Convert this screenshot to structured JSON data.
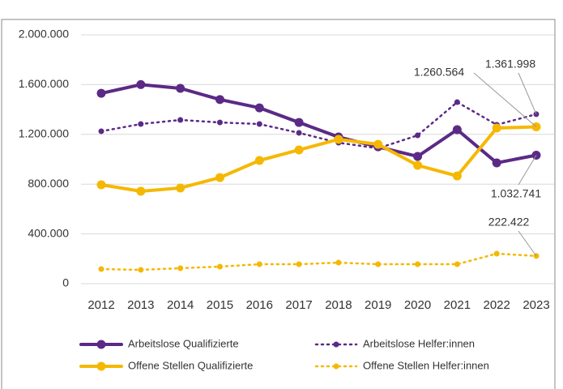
{
  "chart_data": {
    "type": "line",
    "categories": [
      "2012",
      "2013",
      "2014",
      "2015",
      "2016",
      "2017",
      "2018",
      "2019",
      "2020",
      "2021",
      "2022",
      "2023"
    ],
    "series": [
      {
        "name": "Arbeitslose Qualifizierte",
        "color": "#5b2a86",
        "style": "solid",
        "values": [
          1530000,
          1600000,
          1570000,
          1480000,
          1413000,
          1296000,
          1179000,
          1100000,
          1023000,
          1238000,
          971000,
          1032741
        ],
        "value_labels": [
          null,
          null,
          null,
          null,
          null,
          null,
          null,
          null,
          null,
          null,
          null,
          "1.032.741"
        ]
      },
      {
        "name": "Arbeitslose Helfer:innen",
        "color": "#5b2a86",
        "style": "dotted",
        "values": [
          1225000,
          1283000,
          1316000,
          1296000,
          1283000,
          1212000,
          1133000,
          1088000,
          1192000,
          1459000,
          1277000,
          1361998
        ],
        "value_labels": [
          null,
          null,
          null,
          null,
          null,
          null,
          null,
          null,
          null,
          null,
          null,
          "1.361.998"
        ]
      },
      {
        "name": "Offene Stellen Qualifizierte",
        "color": "#f5b800",
        "style": "solid",
        "values": [
          795000,
          743000,
          769000,
          853000,
          990000,
          1075000,
          1160000,
          1120000,
          951000,
          866000,
          1251000,
          1260564
        ],
        "value_labels": [
          null,
          null,
          null,
          null,
          null,
          null,
          null,
          null,
          null,
          null,
          null,
          "1.260.564"
        ]
      },
      {
        "name": "Offene Stellen Helfer:innen",
        "color": "#f5b800",
        "style": "dotted",
        "values": [
          117000,
          111000,
          124000,
          137000,
          156000,
          156000,
          169000,
          156000,
          156000,
          156000,
          241000,
          222422
        ],
        "value_labels": [
          null,
          null,
          null,
          null,
          null,
          null,
          null,
          null,
          null,
          null,
          null,
          "222.422"
        ]
      }
    ],
    "ylim": [
      0,
      2000000
    ],
    "yticks": [
      0,
      {
        "value": 400000,
        "label": "400.000"
      },
      {
        "value": 800000,
        "label": "800.000"
      },
      {
        "value": 1200000,
        "label": "1.200.000"
      },
      {
        "value": 1600000,
        "label": "1.600.000"
      },
      {
        "value": 2000000,
        "label": "2.000.000"
      }
    ],
    "grid": true
  }
}
